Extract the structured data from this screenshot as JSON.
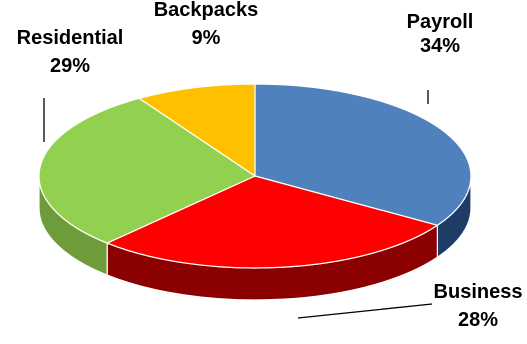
{
  "chart_data": {
    "type": "pie",
    "style": "3d",
    "title": "",
    "legend": "none",
    "slices": [
      {
        "name": "Payroll",
        "value": 34,
        "label": "34%",
        "color": "#4F81BD",
        "side_color": "#1F3C66"
      },
      {
        "name": "Business",
        "value": 28,
        "label": "28%",
        "color": "#FF0000",
        "side_color": "#8B0000"
      },
      {
        "name": "Residential",
        "value": 29,
        "label": "29%",
        "color": "#92D050",
        "side_color": "#6E9C3A"
      },
      {
        "name": "Backpacks",
        "value": 9,
        "label": "9%",
        "color": "#FFC000",
        "side_color": "#C08F00"
      }
    ]
  }
}
